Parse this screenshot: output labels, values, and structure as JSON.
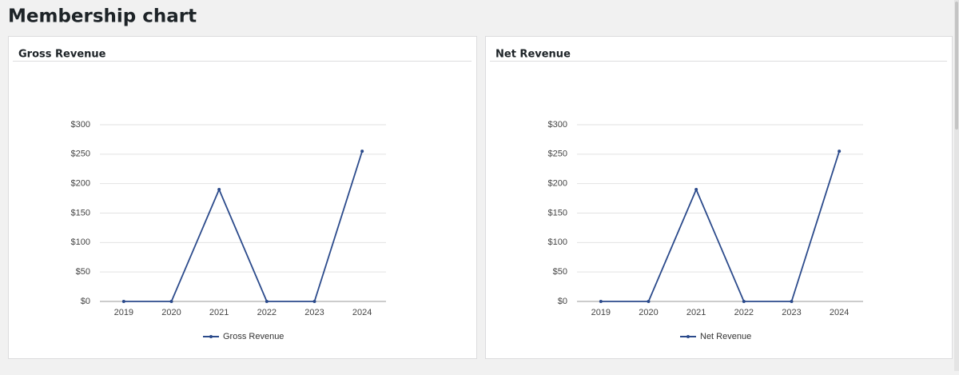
{
  "header": {
    "title": "Membership chart"
  },
  "chart_data": [
    {
      "type": "line",
      "title": "Gross Revenue",
      "categories": [
        "2019",
        "2020",
        "2021",
        "2022",
        "2023",
        "2024"
      ],
      "series": [
        {
          "name": "Gross Revenue",
          "color": "#2b4a8b",
          "values": [
            0,
            0,
            190,
            0,
            0,
            255
          ]
        }
      ],
      "ylim": [
        0,
        300
      ],
      "yticks": [
        {
          "value": 0,
          "label": "$0"
        },
        {
          "value": 50,
          "label": "$50"
        },
        {
          "value": 100,
          "label": "$100"
        },
        {
          "value": 150,
          "label": "$150"
        },
        {
          "value": 200,
          "label": "$200"
        },
        {
          "value": 250,
          "label": "$250"
        },
        {
          "value": 300,
          "label": "$300"
        }
      ],
      "grid": true,
      "legend": "bottom"
    },
    {
      "type": "line",
      "title": "Net Revenue",
      "categories": [
        "2019",
        "2020",
        "2021",
        "2022",
        "2023",
        "2024"
      ],
      "series": [
        {
          "name": "Net Revenue",
          "color": "#2b4a8b",
          "values": [
            0,
            0,
            190,
            0,
            0,
            255
          ]
        }
      ],
      "ylim": [
        0,
        300
      ],
      "yticks": [
        {
          "value": 0,
          "label": "$0"
        },
        {
          "value": 50,
          "label": "$50"
        },
        {
          "value": 100,
          "label": "$100"
        },
        {
          "value": 150,
          "label": "$150"
        },
        {
          "value": 200,
          "label": "$200"
        },
        {
          "value": 250,
          "label": "$250"
        },
        {
          "value": 300,
          "label": "$300"
        }
      ],
      "grid": true,
      "legend": "bottom"
    }
  ]
}
